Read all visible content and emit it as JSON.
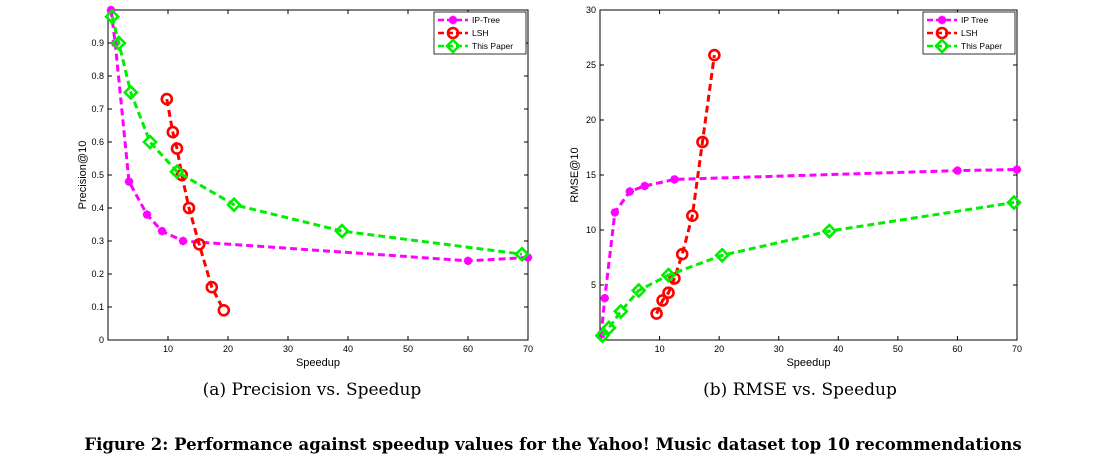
{
  "chart_data": [
    {
      "type": "line",
      "title": "",
      "caption": "(a) Precision vs. Speedup",
      "xlabel": "Speedup",
      "ylabel": "Precision@10",
      "xlim": [
        0,
        70
      ],
      "ylim": [
        0,
        1
      ],
      "xticks": [
        "10",
        "20",
        "30",
        "40",
        "50",
        "60",
        "70"
      ],
      "yticks": [
        "0",
        "0.1",
        "0.2",
        "0.3",
        "0.4",
        "0.5",
        "0.6",
        "0.7",
        "0.8",
        "0.9"
      ],
      "legend_position": "top-right",
      "series": [
        {
          "name": "IP-Tree",
          "color": "#ff00ff",
          "marker": "star",
          "x": [
            0.5,
            1.2,
            3.5,
            6.5,
            9,
            12.5,
            60,
            70
          ],
          "y": [
            1.0,
            0.9,
            0.48,
            0.38,
            0.33,
            0.3,
            0.24,
            0.25
          ]
        },
        {
          "name": "LSH",
          "color": "#ff0000",
          "marker": "circle",
          "x": [
            9.8,
            10.8,
            11.5,
            12.3,
            13.5,
            15.2,
            17.3,
            19.3
          ],
          "y": [
            0.73,
            0.63,
            0.58,
            0.5,
            0.4,
            0.29,
            0.16,
            0.09
          ]
        },
        {
          "name": "This Paper",
          "color": "#00ee00",
          "marker": "diamond",
          "x": [
            0.7,
            1.8,
            3.8,
            7,
            11.5,
            21,
            39,
            69
          ],
          "y": [
            0.98,
            0.9,
            0.75,
            0.6,
            0.51,
            0.41,
            0.33,
            0.26
          ]
        }
      ]
    },
    {
      "type": "line",
      "title": "",
      "caption": "(b) RMSE vs. Speedup",
      "xlabel": "Speedup",
      "ylabel": "RMSE@10",
      "xlim": [
        0,
        70
      ],
      "ylim": [
        0,
        30
      ],
      "xticks": [
        "10",
        "20",
        "30",
        "40",
        "50",
        "60",
        "70"
      ],
      "yticks": [
        "5",
        "10",
        "15",
        "20",
        "25",
        "30"
      ],
      "legend_position": "top-right",
      "series": [
        {
          "name": "IP Tree",
          "color": "#ff00ff",
          "marker": "star",
          "x": [
            0.2,
            0.8,
            2.5,
            5,
            7.5,
            12.5,
            60,
            70
          ],
          "y": [
            0.5,
            3.8,
            11.6,
            13.5,
            14.0,
            14.6,
            15.4,
            15.5
          ]
        },
        {
          "name": "LSH",
          "color": "#ff0000",
          "marker": "circle",
          "x": [
            9.5,
            10.5,
            11.5,
            12.5,
            13.8,
            15.5,
            17.2,
            19.2
          ],
          "y": [
            2.4,
            3.6,
            4.3,
            5.6,
            7.8,
            11.3,
            18.0,
            25.9
          ]
        },
        {
          "name": "This Paper",
          "color": "#00ee00",
          "marker": "diamond",
          "x": [
            0.4,
            1.5,
            3.5,
            6.5,
            11.5,
            20.5,
            38.5,
            69.5
          ],
          "y": [
            0.4,
            1.1,
            2.6,
            4.5,
            5.9,
            7.7,
            9.9,
            12.5
          ]
        }
      ]
    }
  ],
  "figure_caption": "Figure 2: Performance against speedup values for the Yahoo! Music dataset top 10 recommendations"
}
